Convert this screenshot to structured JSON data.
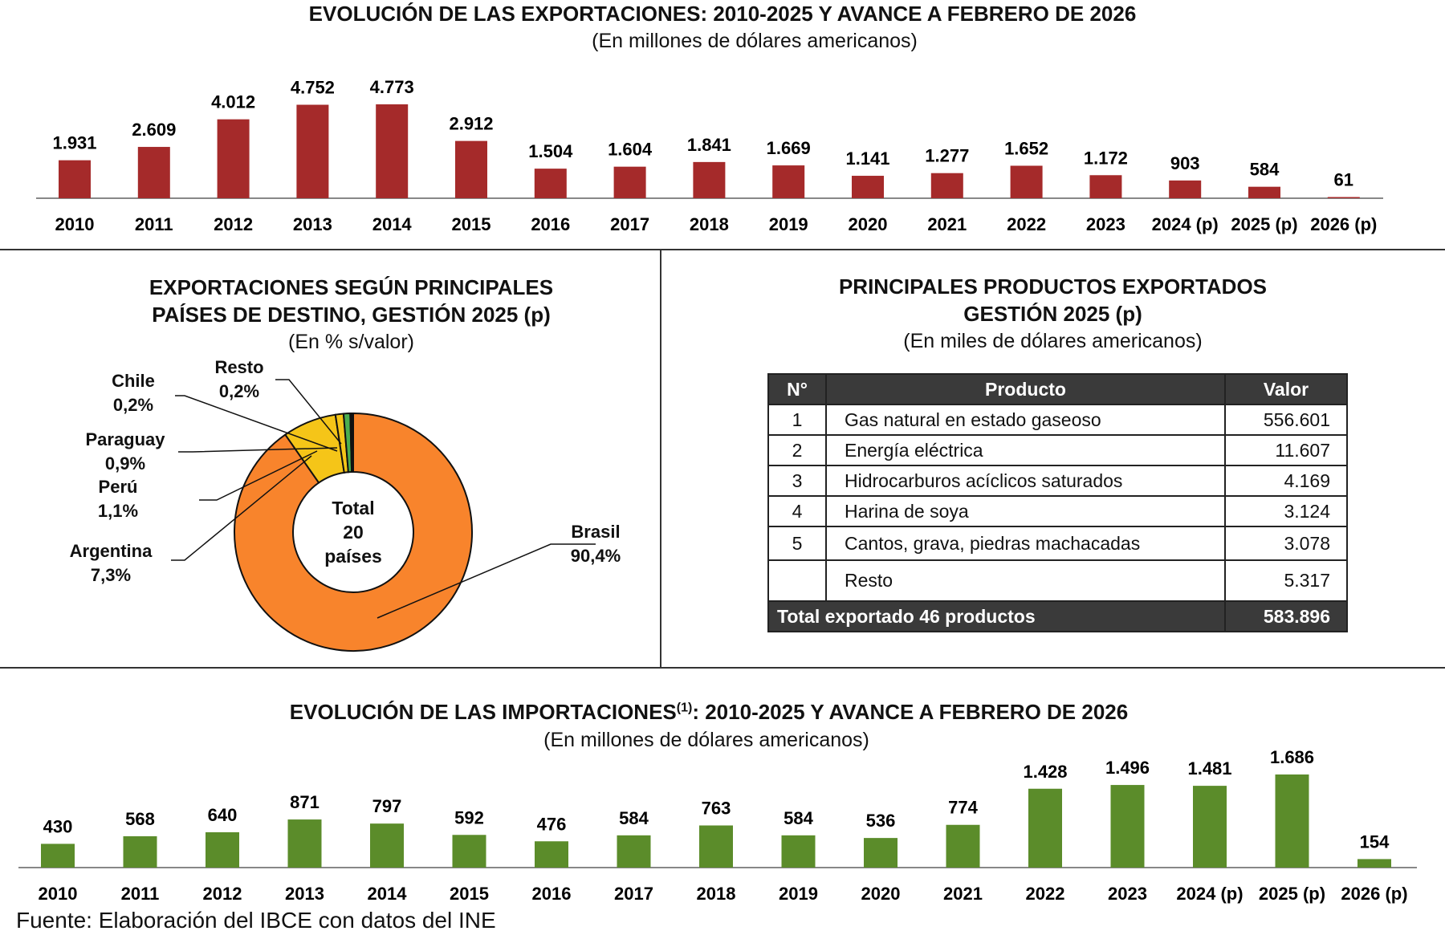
{
  "chart_data": [
    {
      "type": "bar",
      "title": "EVOLUCIÓN DE LAS EXPORTACIONES: 2010-2025 Y AVANCE A FEBRERO DE 2026",
      "subtitle": "(En millones de dólares americanos)",
      "categories": [
        "2010",
        "2011",
        "2012",
        "2013",
        "2014",
        "2015",
        "2016",
        "2017",
        "2018",
        "2019",
        "2020",
        "2021",
        "2022",
        "2023",
        "2024 (p)",
        "2025 (p)",
        "2026 (p)"
      ],
      "values": [
        1931,
        2609,
        4012,
        4752,
        4773,
        2912,
        1504,
        1604,
        1841,
        1669,
        1141,
        1277,
        1652,
        1172,
        903,
        584,
        61
      ],
      "labels": [
        "1.931",
        "2.609",
        "4.012",
        "4.752",
        "4.773",
        "2.912",
        "1.504",
        "1.604",
        "1.841",
        "1.669",
        "1.141",
        "1.277",
        "1.652",
        "1.172",
        "903",
        "584",
        "61"
      ],
      "color": "#a52a2a"
    },
    {
      "type": "pie",
      "title_line1": "EXPORTACIONES SEGÚN PRINCIPALES",
      "title_line2": "PAÍSES DE DESTINO, GESTIÓN 2025 (p)",
      "subtitle": "(En % s/valor)",
      "center_text": [
        "Total",
        "20",
        "países"
      ],
      "slices": [
        {
          "name": "Brasil",
          "value": 90.4,
          "label": "90,4%",
          "color": "#f8842c"
        },
        {
          "name": "Argentina",
          "value": 7.3,
          "label": "7,3%",
          "color": "#f5c518"
        },
        {
          "name": "Perú",
          "value": 1.1,
          "label": "1,1%",
          "color": "#f5c518"
        },
        {
          "name": "Paraguay",
          "value": 0.9,
          "label": "0,9%",
          "color": "#4caf50"
        },
        {
          "name": "Chile",
          "value": 0.2,
          "label": "0,2%",
          "color": "#2e7d32"
        },
        {
          "name": "Resto",
          "value": 0.2,
          "label": "0,2%",
          "color": "#222222"
        }
      ]
    },
    {
      "type": "bar",
      "title": "EVOLUCIÓN DE LAS IMPORTACIONES",
      "title_sup": "(1)",
      "title_rest": ": 2010-2025 Y AVANCE A FEBRERO DE 2026",
      "subtitle": "(En millones de dólares americanos)",
      "categories": [
        "2010",
        "2011",
        "2012",
        "2013",
        "2014",
        "2015",
        "2016",
        "2017",
        "2018",
        "2019",
        "2020",
        "2021",
        "2022",
        "2023",
        "2024 (p)",
        "2025 (p)",
        "2026 (p)"
      ],
      "values": [
        430,
        568,
        640,
        871,
        797,
        592,
        476,
        584,
        763,
        584,
        536,
        774,
        1428,
        1496,
        1481,
        1686,
        154
      ],
      "labels": [
        "430",
        "568",
        "640",
        "871",
        "797",
        "592",
        "476",
        "584",
        "763",
        "584",
        "536",
        "774",
        "1.428",
        "1.496",
        "1.481",
        "1.686",
        "154"
      ],
      "color": "#5b8c2a"
    }
  ],
  "table": {
    "title_line1": "PRINCIPALES PRODUCTOS EXPORTADOS",
    "title_line2": "GESTIÓN 2025 (p)",
    "subtitle": "(En miles de dólares americanos)",
    "headers": [
      "N°",
      "Producto",
      "Valor"
    ],
    "rows": [
      [
        "1",
        "Gas natural en estado gaseoso",
        "556.601"
      ],
      [
        "2",
        "Energía eléctrica",
        "11.607"
      ],
      [
        "3",
        "Hidrocarburos acíclicos saturados",
        "4.169"
      ],
      [
        "4",
        "Harina de soya",
        "3.124"
      ],
      [
        "5",
        "Cantos, grava, piedras machacadas",
        "3.078"
      ],
      [
        "",
        "Resto",
        "5.317"
      ]
    ],
    "total_label": "Total exportado 46 productos",
    "total_value": "583.896"
  },
  "footer": "Fuente: Elaboración del IBCE con datos del INE"
}
